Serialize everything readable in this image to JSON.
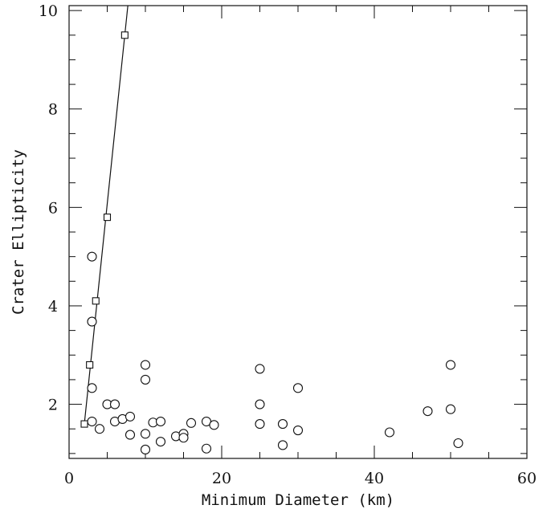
{
  "chart_data": {
    "type": "scatter",
    "title": "",
    "xlabel": "Minimum Diameter (km)",
    "ylabel": "Crater Ellipticity",
    "xlim": [
      0,
      60
    ],
    "ylim": [
      0.9,
      10.1
    ],
    "x_ticks": [
      "0",
      "20",
      "40",
      "60"
    ],
    "y_ticks": [
      "2",
      "4",
      "6",
      "8",
      "10"
    ],
    "grid": false,
    "legend": "none",
    "series": [
      {
        "marker": "circle",
        "points": [
          [
            3,
            5.0
          ],
          [
            3,
            3.68
          ],
          [
            3,
            2.33
          ],
          [
            3,
            1.65
          ],
          [
            4,
            1.5
          ],
          [
            5,
            2.0
          ],
          [
            6,
            2.0
          ],
          [
            6,
            1.65
          ],
          [
            7,
            1.7
          ],
          [
            8,
            1.75
          ],
          [
            8,
            1.38
          ],
          [
            10,
            2.8
          ],
          [
            10,
            2.5
          ],
          [
            10,
            1.4
          ],
          [
            10,
            1.08
          ],
          [
            11,
            1.63
          ],
          [
            12,
            1.65
          ],
          [
            12,
            1.24
          ],
          [
            14,
            1.35
          ],
          [
            15,
            1.4
          ],
          [
            15,
            1.32
          ],
          [
            16,
            1.62
          ],
          [
            18,
            1.65
          ],
          [
            18,
            1.1
          ],
          [
            19,
            1.58
          ],
          [
            25,
            2.72
          ],
          [
            25,
            2.0
          ],
          [
            25,
            1.6
          ],
          [
            28,
            1.6
          ],
          [
            28,
            1.17
          ],
          [
            30,
            2.33
          ],
          [
            30,
            1.47
          ],
          [
            42,
            1.43
          ],
          [
            47,
            1.86
          ],
          [
            50,
            2.8
          ],
          [
            50,
            1.9
          ],
          [
            51,
            1.21
          ]
        ]
      },
      {
        "marker": "square",
        "line": true,
        "points": [
          [
            2,
            1.6
          ],
          [
            2.7,
            2.8
          ],
          [
            3.5,
            4.1
          ],
          [
            5,
            5.8
          ],
          [
            7.3,
            9.5
          ]
        ]
      }
    ]
  }
}
